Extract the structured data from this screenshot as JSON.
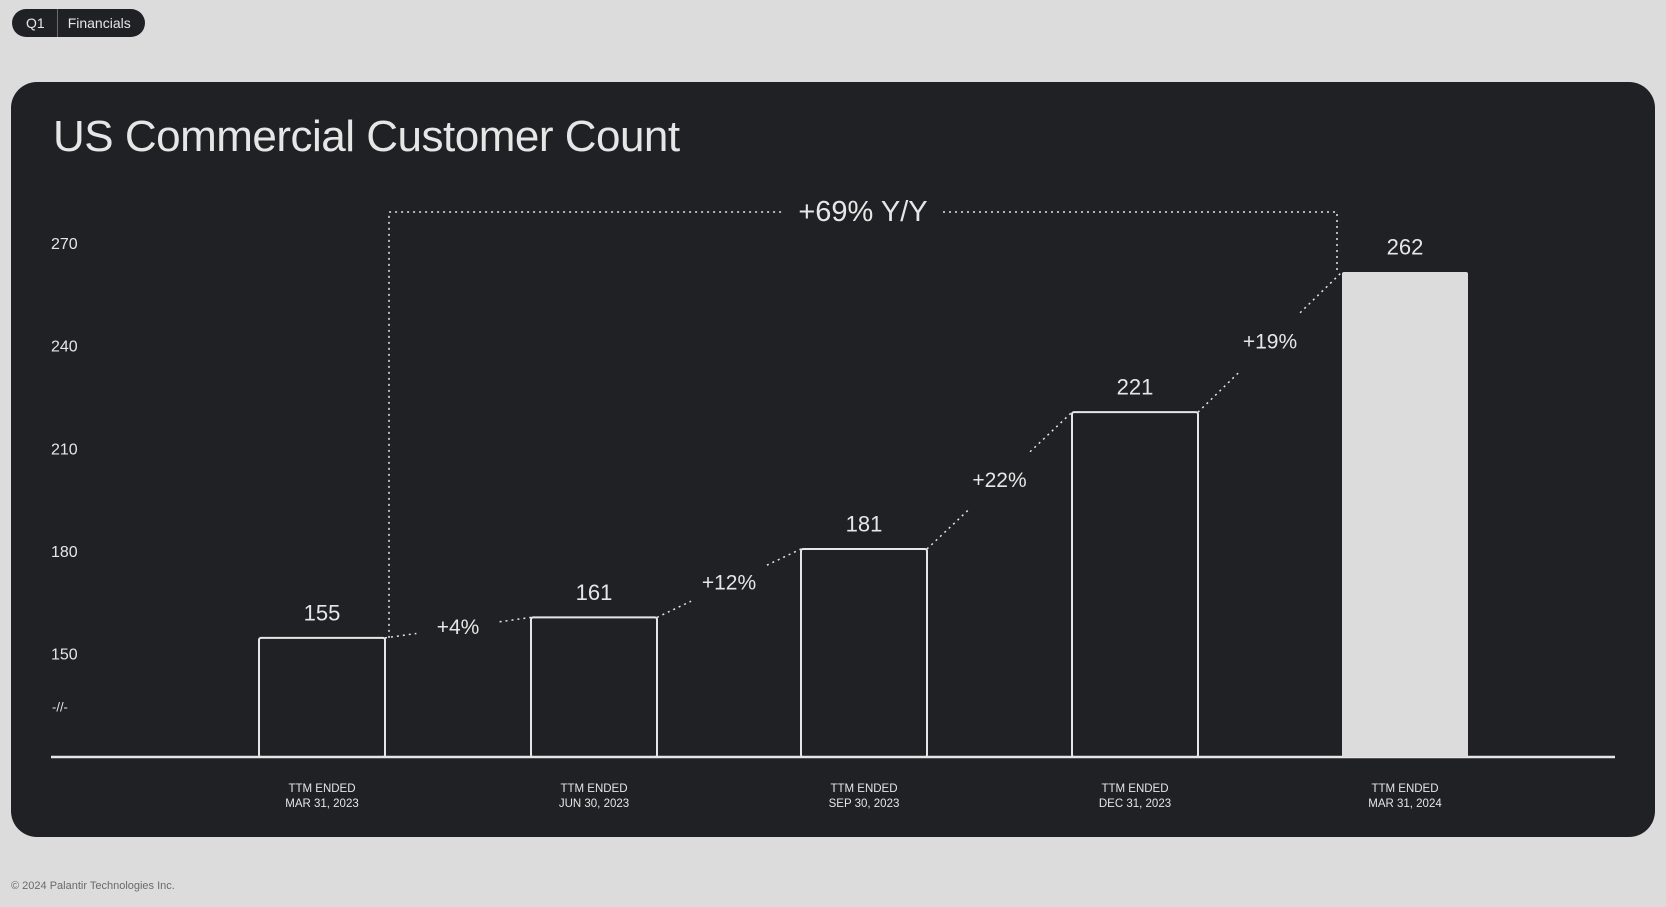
{
  "badge": {
    "quarter": "Q1",
    "section": "Financials"
  },
  "title": "US Commercial Customer Count",
  "footer": "© 2024 Palantir Technologies Inc.",
  "colors": {
    "page_bg": "#dcdcdc",
    "card_bg": "#202124",
    "text": "#e6e6e6",
    "highlight_bar": "#dcdcdc"
  },
  "chart_data": {
    "type": "bar",
    "title": "US Commercial Customer Count",
    "categories": [
      [
        "TTM ENDED",
        "MAR 31, 2023"
      ],
      [
        "TTM ENDED",
        "JUN 30, 2023"
      ],
      [
        "TTM ENDED",
        "SEP 30, 2023"
      ],
      [
        "TTM ENDED",
        "DEC 31, 2023"
      ],
      [
        "TTM ENDED",
        "MAR 31, 2024"
      ]
    ],
    "values": [
      155,
      161,
      181,
      221,
      262
    ],
    "highlight_index": 4,
    "yticks": [
      150,
      180,
      210,
      240,
      270
    ],
    "ylim": [
      120,
      275
    ],
    "axis_break": true,
    "axis_break_label": "-//-",
    "growth_labels": [
      "+4%",
      "+12%",
      "+22%",
      "+19%"
    ],
    "yoy_label": "+69% Y/Y",
    "grid": false,
    "legend": "none"
  }
}
